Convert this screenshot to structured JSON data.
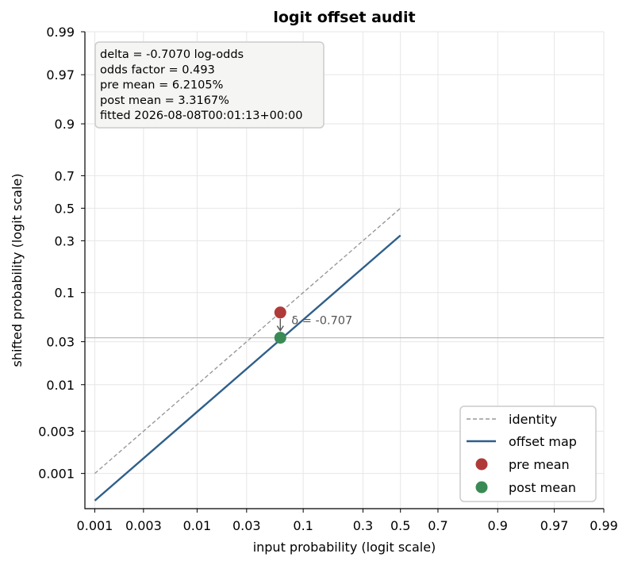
{
  "chart_data": {
    "type": "line",
    "title": "logit offset audit",
    "xlabel": "input probability (logit scale)",
    "ylabel": "shifted probability (logit scale)",
    "x_scale": "logit",
    "y_scale": "logit",
    "xlim": [
      0.0008,
      0.99
    ],
    "ylim": [
      0.0004,
      0.99
    ],
    "x_ticks": [
      0.001,
      0.003,
      0.01,
      0.03,
      0.1,
      0.3,
      0.5,
      0.7,
      0.9,
      0.97,
      0.99
    ],
    "x_tick_labels": [
      "0.001",
      "0.003",
      "0.01",
      "0.03",
      "0.1",
      "0.3",
      "0.5",
      "0.7",
      "0.9",
      "0.97",
      "0.99"
    ],
    "y_ticks": [
      0.001,
      0.003,
      0.01,
      0.03,
      0.1,
      0.3,
      0.5,
      0.7,
      0.9,
      0.97,
      0.99
    ],
    "y_tick_labels": [
      "0.001",
      "0.003",
      "0.01",
      "0.03",
      "0.1",
      "0.3",
      "0.5",
      "0.7",
      "0.9",
      "0.97",
      "0.99"
    ],
    "grid": true,
    "series": [
      {
        "name": "identity",
        "style": "dashed",
        "color": "#999999",
        "x": [
          0.001,
          0.5
        ],
        "y": [
          0.001,
          0.5
        ]
      },
      {
        "name": "offset map",
        "style": "solid",
        "color": "#2f5f8a",
        "x": [
          0.001,
          0.5
        ],
        "y": [
          0.000493,
          0.3302
        ]
      }
    ],
    "points": [
      {
        "name": "pre mean",
        "x": 0.062105,
        "y": 0.062105,
        "color": "#b03a3a"
      },
      {
        "name": "post mean",
        "x": 0.062105,
        "y": 0.033167,
        "color": "#3a8a55"
      }
    ],
    "hline": {
      "y": 0.033167,
      "color": "#bbbbbb"
    },
    "annotation": {
      "text": "δ = -0.707"
    },
    "info_box": [
      "delta = -0.7070 log-odds",
      "odds factor = 0.493",
      "pre mean = 6.2105%",
      "post mean = 3.3167%",
      "fitted 2026-08-08T00:01:13+00:00"
    ],
    "legend": {
      "position": "bottom-right",
      "entries": [
        "identity",
        "offset map",
        "pre mean",
        "post mean"
      ]
    }
  }
}
